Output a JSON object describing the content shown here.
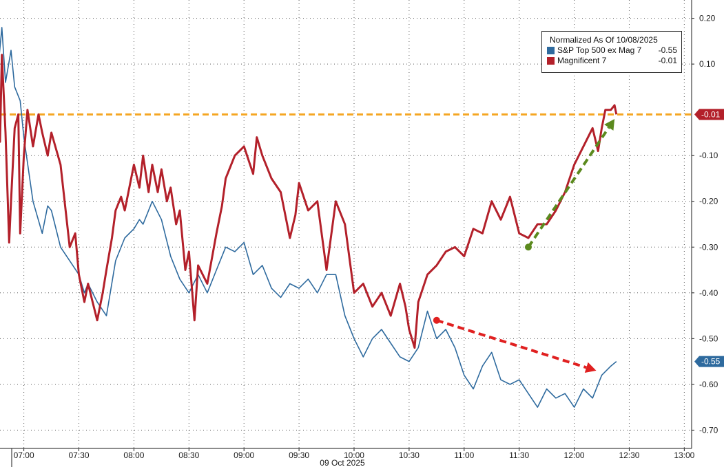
{
  "chart_data": {
    "type": "line",
    "date_label": "09 Oct 2025",
    "legend": {
      "title": "Normalized As Of 10/08/2025",
      "position": "top-right"
    },
    "x_ticks": [
      "07:00",
      "07:30",
      "08:00",
      "08:30",
      "09:00",
      "09:30",
      "10:00",
      "10:30",
      "11:00",
      "11:30",
      "12:00",
      "12:30",
      "13:00"
    ],
    "xlim": [
      "06:47",
      "13:04"
    ],
    "y_ticks": [
      "0.20",
      "0.10",
      "-0.10",
      "-0.20",
      "-0.30",
      "-0.40",
      "-0.50",
      "-0.60",
      "-0.70"
    ],
    "ylim": [
      -0.74,
      0.24
    ],
    "grid": true,
    "reference_line": {
      "value": -0.01,
      "color": "#f5a623",
      "style": "dashed"
    },
    "series": [
      {
        "name": "S&P Top 500 ex Mag 7",
        "last_value": "-0.55",
        "end_label": "-0.55",
        "color": "#2e6a9e",
        "x": [
          "06:45",
          "06:48",
          "06:50",
          "06:53",
          "06:55",
          "06:58",
          "07:00",
          "07:05",
          "07:10",
          "07:13",
          "07:15",
          "07:20",
          "07:25",
          "07:30",
          "07:33",
          "07:35",
          "07:40",
          "07:45",
          "07:50",
          "07:55",
          "08:00",
          "08:03",
          "08:05",
          "08:10",
          "08:15",
          "08:20",
          "08:25",
          "08:30",
          "08:35",
          "08:40",
          "08:45",
          "08:50",
          "08:55",
          "09:00",
          "09:05",
          "09:10",
          "09:15",
          "09:20",
          "09:25",
          "09:30",
          "09:35",
          "09:40",
          "09:45",
          "09:50",
          "09:55",
          "10:00",
          "10:05",
          "10:10",
          "10:15",
          "10:20",
          "10:25",
          "10:30",
          "10:35",
          "10:40",
          "10:45",
          "10:50",
          "10:55",
          "11:00",
          "11:05",
          "11:10",
          "11:15",
          "11:20",
          "11:25",
          "11:30",
          "11:35",
          "11:40",
          "11:45",
          "11:50",
          "11:55",
          "12:00",
          "12:05",
          "12:10",
          "12:15",
          "12:20",
          "12:23"
        ],
        "y": [
          0.05,
          0.18,
          0.06,
          0.13,
          0.05,
          0.02,
          -0.06,
          -0.2,
          -0.27,
          -0.21,
          -0.22,
          -0.3,
          -0.33,
          -0.36,
          -0.4,
          -0.38,
          -0.42,
          -0.45,
          -0.33,
          -0.28,
          -0.26,
          -0.24,
          -0.25,
          -0.2,
          -0.24,
          -0.32,
          -0.37,
          -0.4,
          -0.36,
          -0.4,
          -0.35,
          -0.3,
          -0.31,
          -0.29,
          -0.36,
          -0.34,
          -0.39,
          -0.41,
          -0.38,
          -0.39,
          -0.37,
          -0.4,
          -0.36,
          -0.36,
          -0.45,
          -0.5,
          -0.54,
          -0.5,
          -0.48,
          -0.51,
          -0.54,
          -0.55,
          -0.52,
          -0.44,
          -0.5,
          -0.48,
          -0.52,
          -0.58,
          -0.61,
          -0.56,
          -0.53,
          -0.59,
          -0.6,
          -0.59,
          -0.62,
          -0.65,
          -0.61,
          -0.63,
          -0.62,
          -0.65,
          -0.61,
          -0.63,
          -0.58,
          -0.56,
          -0.55
        ]
      },
      {
        "name": "Magnificent 7",
        "last_value": "-0.01",
        "end_label": "-0.01",
        "color": "#b3202a",
        "x": [
          "06:45",
          "06:47",
          "06:48",
          "06:50",
          "06:52",
          "06:53",
          "06:55",
          "06:57",
          "06:58",
          "07:00",
          "07:02",
          "07:05",
          "07:08",
          "07:10",
          "07:13",
          "07:15",
          "07:20",
          "07:25",
          "07:28",
          "07:30",
          "07:33",
          "07:35",
          "07:40",
          "07:43",
          "07:45",
          "07:48",
          "07:50",
          "07:53",
          "07:55",
          "08:00",
          "08:03",
          "08:05",
          "08:08",
          "08:10",
          "08:13",
          "08:15",
          "08:18",
          "08:20",
          "08:23",
          "08:25",
          "08:28",
          "08:30",
          "08:33",
          "08:35",
          "08:40",
          "08:45",
          "08:48",
          "08:50",
          "08:55",
          "09:00",
          "09:05",
          "09:07",
          "09:10",
          "09:15",
          "09:20",
          "09:25",
          "09:28",
          "09:30",
          "09:35",
          "09:40",
          "09:45",
          "09:50",
          "09:55",
          "10:00",
          "10:05",
          "10:10",
          "10:15",
          "10:20",
          "10:25",
          "10:28",
          "10:30",
          "10:33",
          "10:35",
          "10:40",
          "10:45",
          "10:50",
          "10:55",
          "11:00",
          "11:05",
          "11:10",
          "11:15",
          "11:20",
          "11:25",
          "11:30",
          "11:35",
          "11:40",
          "11:45",
          "11:50",
          "11:55",
          "12:00",
          "12:05",
          "12:10",
          "12:13",
          "12:15",
          "12:17",
          "12:20",
          "12:22",
          "12:23"
        ],
        "y": [
          -0.04,
          -0.07,
          0.12,
          -0.05,
          -0.29,
          -0.2,
          -0.04,
          -0.01,
          -0.27,
          -0.1,
          0.0,
          -0.08,
          -0.01,
          -0.05,
          -0.1,
          -0.05,
          -0.12,
          -0.3,
          -0.27,
          -0.36,
          -0.42,
          -0.38,
          -0.46,
          -0.4,
          -0.35,
          -0.28,
          -0.22,
          -0.19,
          -0.22,
          -0.12,
          -0.17,
          -0.1,
          -0.18,
          -0.12,
          -0.18,
          -0.13,
          -0.2,
          -0.17,
          -0.25,
          -0.22,
          -0.35,
          -0.31,
          -0.46,
          -0.34,
          -0.38,
          -0.27,
          -0.21,
          -0.15,
          -0.1,
          -0.08,
          -0.14,
          -0.06,
          -0.1,
          -0.15,
          -0.18,
          -0.28,
          -0.23,
          -0.16,
          -0.22,
          -0.2,
          -0.35,
          -0.2,
          -0.25,
          -0.4,
          -0.38,
          -0.43,
          -0.4,
          -0.45,
          -0.38,
          -0.43,
          -0.48,
          -0.52,
          -0.42,
          -0.36,
          -0.34,
          -0.31,
          -0.3,
          -0.32,
          -0.26,
          -0.27,
          -0.2,
          -0.24,
          -0.19,
          -0.27,
          -0.28,
          -0.25,
          -0.25,
          -0.22,
          -0.18,
          -0.12,
          -0.08,
          -0.04,
          -0.09,
          -0.04,
          0.0,
          0.0,
          0.01,
          -0.01
        ]
      }
    ],
    "annotations": [
      {
        "kind": "dashed-arrow",
        "color": "#e02020",
        "from": {
          "x": "10:45",
          "y": -0.46
        },
        "to": {
          "x": "12:12",
          "y": -0.57
        }
      },
      {
        "kind": "dashed-arrow",
        "color": "#5b8a1e",
        "from": {
          "x": "11:35",
          "y": -0.3
        },
        "to": {
          "x": "12:22",
          "y": -0.02
        }
      }
    ]
  }
}
